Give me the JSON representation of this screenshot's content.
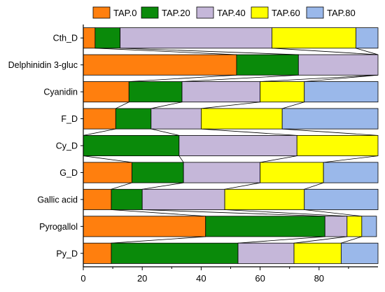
{
  "chart_data": {
    "type": "bar",
    "orientation": "horizontal",
    "stacked": true,
    "categories": [
      "Cth_D",
      "Delphinidin 3-gluc",
      "Cyanidin",
      "F_D",
      "Cy_D",
      "G_D",
      "Gallic acid",
      "Pyrogallol",
      "Py_D"
    ],
    "series": [
      {
        "name": "TAP.0",
        "color": "#ff7f0e",
        "values": [
          4,
          52,
          15.5,
          11,
          0,
          16.5,
          9.5,
          41.5,
          9.5
        ]
      },
      {
        "name": "TAP.20",
        "color": "#0a8a0a",
        "values": [
          8.5,
          21,
          18,
          12,
          32.5,
          17.5,
          10.5,
          40.5,
          43
        ]
      },
      {
        "name": "TAP.40",
        "color": "#c5b7d9",
        "values": [
          51.5,
          27,
          26.5,
          17,
          40,
          26,
          28,
          7.5,
          19
        ]
      },
      {
        "name": "TAP.60",
        "color": "#ffff00",
        "values": [
          28.5,
          0,
          15,
          27.5,
          27.5,
          21.5,
          27,
          5,
          16
        ]
      },
      {
        "name": "TAP.80",
        "color": "#9ab8ea",
        "values": [
          7.5,
          0,
          25,
          32.5,
          0,
          18.5,
          25,
          5,
          12.5
        ]
      }
    ],
    "xlim": [
      0,
      100
    ],
    "xticks": [
      0,
      20,
      40,
      60,
      80
    ],
    "xlabel": "",
    "ylabel": "",
    "legend": "top",
    "grid": false,
    "connector_lines": true
  }
}
